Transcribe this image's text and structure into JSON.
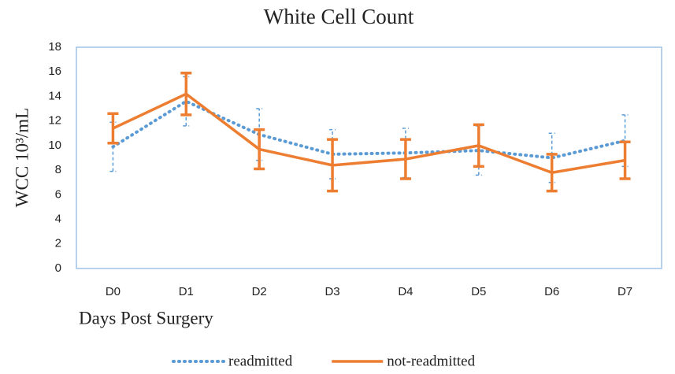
{
  "chart_data": {
    "type": "line",
    "title": "White Cell Count",
    "x_label": "Days Post Surgery",
    "y_label": "WCC 10³/mL",
    "categories": [
      "D0",
      "D1",
      "D2",
      "D3",
      "D4",
      "D5",
      "D6",
      "D7"
    ],
    "series": [
      {
        "name": "readmitted",
        "color": "#5b9bd5",
        "style": "dotted",
        "values": [
          9.9,
          13.6,
          10.9,
          9.3,
          9.4,
          9.6,
          9.0,
          10.4
        ],
        "errors": [
          2.0,
          2.0,
          2.1,
          2.0,
          2.0,
          2.0,
          2.0,
          2.1
        ]
      },
      {
        "name": "not-readmitted",
        "color": "#ed7d31",
        "style": "solid",
        "values": [
          11.4,
          14.2,
          9.7,
          8.4,
          8.9,
          10.0,
          7.8,
          8.8
        ],
        "errors": [
          1.2,
          1.7,
          1.6,
          2.1,
          1.6,
          1.7,
          1.5,
          1.5
        ]
      }
    ],
    "ylim": [
      0,
      18
    ],
    "yticks": [
      0,
      2,
      4,
      6,
      8,
      10,
      12,
      14,
      16,
      18
    ],
    "grid": false,
    "legend": "bottom"
  }
}
